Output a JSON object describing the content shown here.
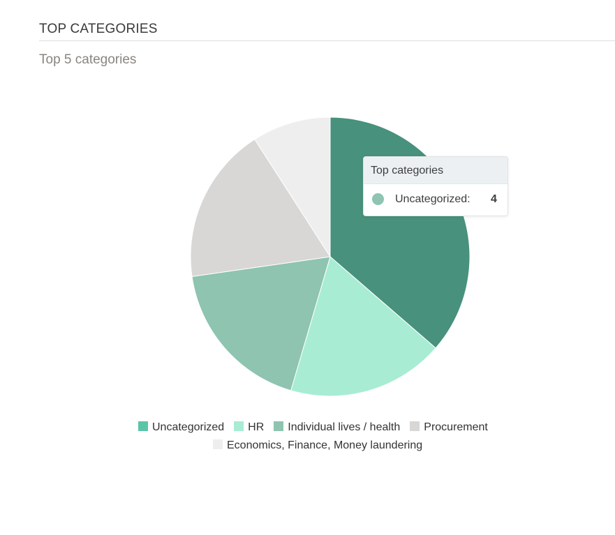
{
  "header": {
    "title": "TOP CATEGORIES",
    "subtitle": "Top 5 categories"
  },
  "chart_data": {
    "type": "pie",
    "title": "",
    "categories": [
      "Uncategorized",
      "HR",
      "Individual lives / health",
      "Procurement",
      "Economics, Finance, Money laundering"
    ],
    "values": [
      4,
      2,
      2,
      2,
      1
    ],
    "colors": [
      "#48917c",
      "#a8ecd4",
      "#8ec4b0",
      "#d8d7d6",
      "#efeeef"
    ],
    "legend_colors": [
      "#5cc5a8",
      "#a8ecd4",
      "#8ec4b0",
      "#d8d7d6",
      "#efeeef"
    ],
    "legend_position": "bottom"
  },
  "tooltip": {
    "title": "Top categories",
    "label": "Uncategorized:",
    "value": "4",
    "dot_color": "#8ec4b0"
  }
}
